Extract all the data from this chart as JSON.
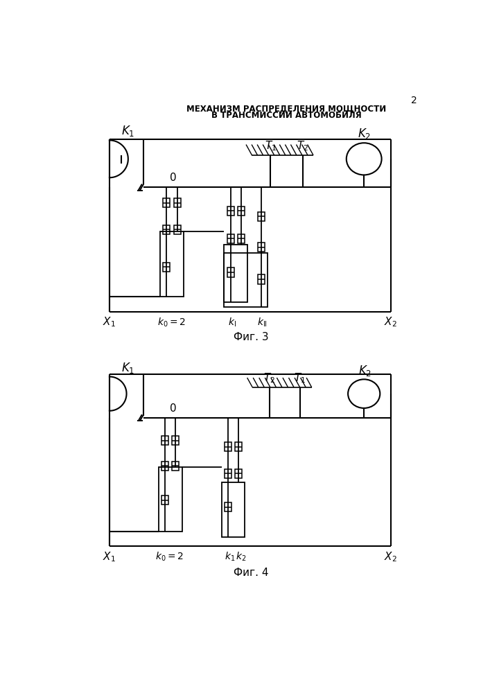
{
  "title_line1": "МЕХАНИЗМ РАСПРЕДЕЛЕНИЯ МОЩНОСТИ",
  "title_line2": "В ТРАНСМИССИИ АВТОМОБИЛЯ",
  "page_number": "2",
  "fig3_label": "Фиг. 3",
  "fig4_label": "Фиг. 4",
  "bg_color": "#ffffff",
  "line_color": "#000000"
}
